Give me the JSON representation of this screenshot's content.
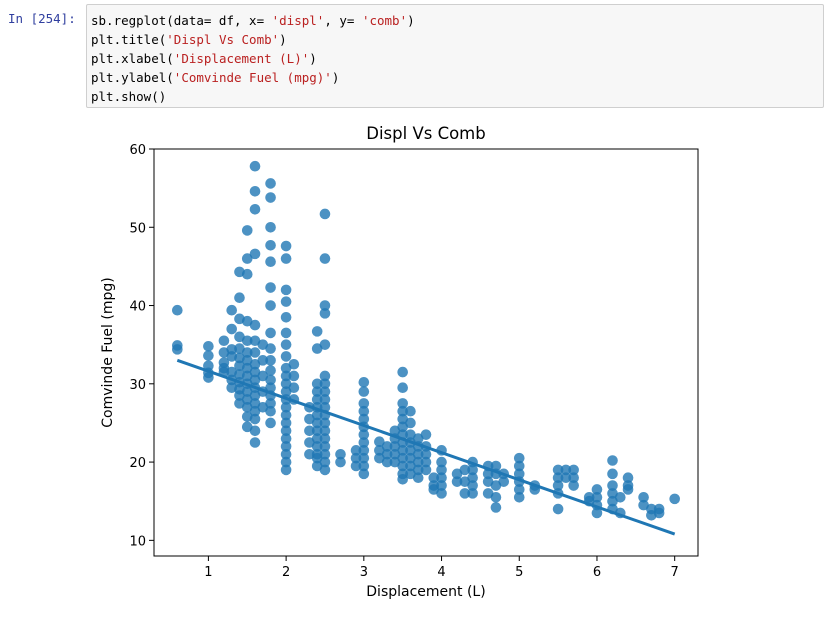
{
  "cell": {
    "prompt": "In [254]:",
    "code": [
      [
        {
          "t": "sb.regplot(data= df, x= "
        },
        {
          "t": "'displ'",
          "s": 1
        },
        {
          "t": ", y= "
        },
        {
          "t": "'comb'",
          "s": 1
        },
        {
          "t": ")"
        }
      ],
      [
        {
          "t": "plt.title("
        },
        {
          "t": "'Displ Vs Comb'",
          "s": 1
        },
        {
          "t": ")"
        }
      ],
      [
        {
          "t": "plt.xlabel("
        },
        {
          "t": "'Displacement (L)'",
          "s": 1
        },
        {
          "t": ")"
        }
      ],
      [
        {
          "t": "plt.ylabel("
        },
        {
          "t": "'Comvinde Fuel (mpg)'",
          "s": 1
        },
        {
          "t": ")"
        }
      ],
      [
        {
          "t": "plt.show()"
        }
      ]
    ]
  },
  "chart_data": {
    "type": "scatter",
    "title": "Displ Vs Comb",
    "xlabel": "Displacement (L)",
    "ylabel": "Comvinde Fuel (mpg)",
    "xlim": [
      0.3,
      7.3
    ],
    "ylim": [
      8,
      60
    ],
    "xticks": [
      1,
      2,
      3,
      4,
      5,
      6,
      7
    ],
    "yticks": [
      10,
      20,
      30,
      40,
      50,
      60
    ],
    "grid": false,
    "color": "#1f77b4",
    "regression_line": {
      "x": [
        0.6,
        7.0
      ],
      "y": [
        33.0,
        10.8
      ]
    },
    "columns": [
      {
        "x": 0.6,
        "y": [
          39.4,
          34.9,
          34.4
        ]
      },
      {
        "x": 1.0,
        "y": [
          34.8,
          33.6,
          32.3,
          31.4,
          30.8
        ]
      },
      {
        "x": 1.2,
        "y": [
          35.5,
          34.0,
          32.7,
          32.0,
          31.5
        ]
      },
      {
        "x": 1.3,
        "y": [
          39.4,
          37.0,
          34.4,
          33.5,
          31.5,
          30.5,
          29.5
        ]
      },
      {
        "x": 1.4,
        "y": [
          44.3,
          41.0,
          38.3,
          36.0,
          34.5,
          33.3,
          32.3,
          31.2,
          30.2,
          29.3,
          28.5,
          27.5
        ]
      },
      {
        "x": 1.5,
        "y": [
          49.6,
          46.0,
          44.0,
          38.0,
          35.5,
          34.0,
          33.0,
          32.0,
          31.0,
          30.0,
          29.0,
          28.0,
          27.0,
          25.8,
          24.5
        ]
      },
      {
        "x": 1.6,
        "y": [
          57.8,
          54.6,
          52.3,
          46.6,
          37.5,
          35.5,
          34.0,
          32.5,
          31.5,
          30.5,
          29.5,
          28.5,
          27.5,
          26.5,
          25.5,
          24.0,
          22.5
        ]
      },
      {
        "x": 1.7,
        "y": [
          35.0,
          33.0,
          31.0,
          29.0,
          27.0
        ]
      },
      {
        "x": 1.8,
        "y": [
          55.6,
          53.8,
          50.0,
          47.7,
          45.6,
          42.3,
          40.0,
          36.5,
          34.5,
          33.0,
          31.7,
          30.5,
          29.5,
          28.5,
          27.5,
          26.5,
          25.0
        ]
      },
      {
        "x": 2.0,
        "y": [
          47.6,
          46.0,
          42.0,
          40.5,
          38.5,
          36.5,
          35.0,
          33.5,
          32.0,
          31.0,
          30.0,
          29.0,
          28.0,
          27.0,
          26.0,
          25.0,
          24.0,
          23.0,
          22.0,
          21.0,
          20.0,
          19.0
        ]
      },
      {
        "x": 2.1,
        "y": [
          32.5,
          31.0,
          29.5,
          28.0
        ]
      },
      {
        "x": 2.3,
        "y": [
          27.0,
          25.5,
          24.0,
          22.5,
          21.0
        ]
      },
      {
        "x": 2.4,
        "y": [
          36.7,
          34.5,
          30.0,
          29.0,
          28.0,
          27.0,
          26.0,
          25.0,
          24.0,
          23.0,
          22.0,
          21.0,
          20.5,
          19.5
        ]
      },
      {
        "x": 2.5,
        "y": [
          51.7,
          46.0,
          40.0,
          39.0,
          35.0,
          31.0,
          30.0,
          29.0,
          28.0,
          27.0,
          26.0,
          25.0,
          24.0,
          23.0,
          22.0,
          21.0,
          20.0,
          19.0
        ]
      },
      {
        "x": 2.7,
        "y": [
          21.0,
          20.0
        ]
      },
      {
        "x": 2.9,
        "y": [
          21.5,
          20.5,
          19.5
        ]
      },
      {
        "x": 3.0,
        "y": [
          30.2,
          29.0,
          27.5,
          26.5,
          25.5,
          24.5,
          23.5,
          22.5,
          21.5,
          20.5,
          19.5,
          18.5
        ]
      },
      {
        "x": 3.2,
        "y": [
          22.6,
          21.5,
          20.5
        ]
      },
      {
        "x": 3.3,
        "y": [
          22.0,
          21.0,
          20.0
        ]
      },
      {
        "x": 3.4,
        "y": [
          24.0,
          23.0,
          22.0,
          21.0,
          20.0
        ]
      },
      {
        "x": 3.5,
        "y": [
          31.5,
          29.5,
          27.5,
          26.5,
          25.5,
          24.5,
          23.5,
          22.5,
          21.5,
          20.5,
          19.5,
          18.5,
          17.8
        ]
      },
      {
        "x": 3.6,
        "y": [
          26.5,
          25.0,
          23.5,
          22.5,
          21.5,
          20.5,
          19.5,
          18.5
        ]
      },
      {
        "x": 3.7,
        "y": [
          23.0,
          22.0,
          21.0,
          20.0,
          19.0,
          18.0
        ]
      },
      {
        "x": 3.8,
        "y": [
          23.5,
          22.0,
          21.0,
          20.0,
          19.0
        ]
      },
      {
        "x": 3.9,
        "y": [
          18.0,
          17.0,
          16.5
        ]
      },
      {
        "x": 4.0,
        "y": [
          21.5,
          20.0,
          19.0,
          18.0,
          17.0,
          16.0
        ]
      },
      {
        "x": 4.2,
        "y": [
          18.5,
          17.5
        ]
      },
      {
        "x": 4.3,
        "y": [
          19.0,
          17.5,
          16.0
        ]
      },
      {
        "x": 4.4,
        "y": [
          20.0,
          19.0,
          18.0,
          17.0,
          16.0
        ]
      },
      {
        "x": 4.6,
        "y": [
          19.5,
          18.5,
          17.5,
          16.0
        ]
      },
      {
        "x": 4.7,
        "y": [
          19.5,
          18.5,
          17.0,
          15.5,
          14.2
        ]
      },
      {
        "x": 4.8,
        "y": [
          18.5,
          17.5
        ]
      },
      {
        "x": 5.0,
        "y": [
          20.5,
          19.5,
          18.5,
          17.5,
          16.5,
          15.5
        ]
      },
      {
        "x": 5.2,
        "y": [
          17.0,
          16.5
        ]
      },
      {
        "x": 5.5,
        "y": [
          19.0,
          18.0,
          17.0,
          16.0,
          14.0
        ]
      },
      {
        "x": 5.6,
        "y": [
          19.0,
          18.0
        ]
      },
      {
        "x": 5.7,
        "y": [
          19.0,
          18.0,
          17.0
        ]
      },
      {
        "x": 5.9,
        "y": [
          15.5,
          15.0
        ]
      },
      {
        "x": 6.0,
        "y": [
          16.5,
          15.5,
          14.5,
          13.5
        ]
      },
      {
        "x": 6.2,
        "y": [
          20.2,
          18.5,
          17.0,
          16.0,
          15.0,
          14.0
        ]
      },
      {
        "x": 6.3,
        "y": [
          15.5,
          13.5
        ]
      },
      {
        "x": 6.4,
        "y": [
          18.0,
          17.0,
          16.5
        ]
      },
      {
        "x": 6.6,
        "y": [
          15.5,
          14.5
        ]
      },
      {
        "x": 6.8,
        "y": [
          14.0,
          13.5
        ]
      },
      {
        "x": 6.7,
        "y": [
          14.0,
          13.2
        ]
      },
      {
        "x": 7.0,
        "y": [
          15.3
        ]
      }
    ]
  }
}
